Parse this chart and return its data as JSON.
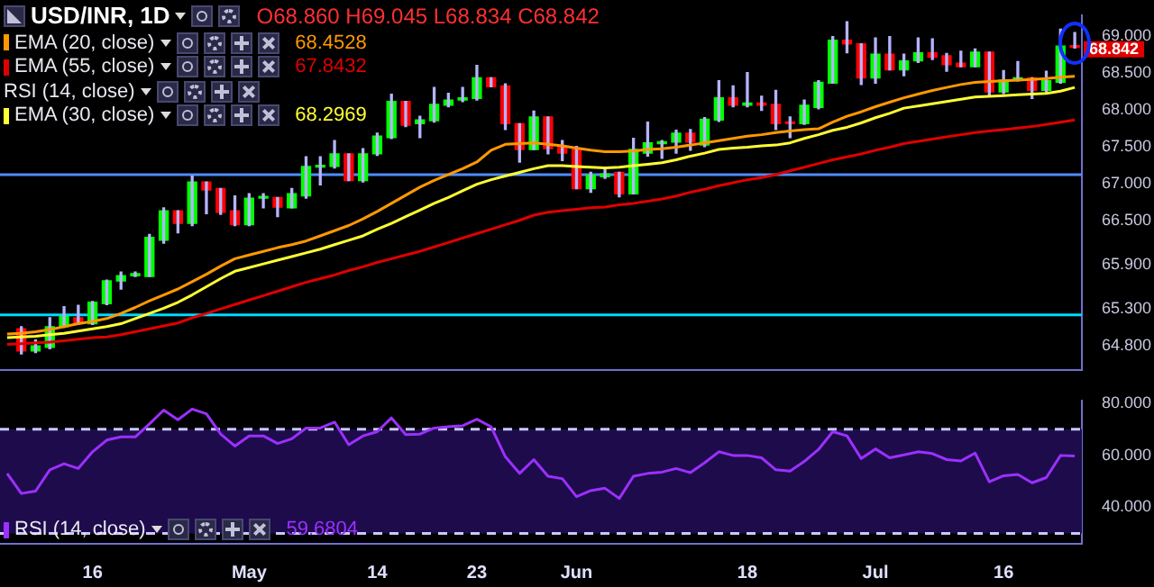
{
  "chart_data": [
    {
      "type": "candlestick",
      "title": "USD/INR, 1D",
      "tick_labels": "y",
      "legend": "top left",
      "grid": false,
      "marker": "none",
      "categories": [
        null,
        null,
        null,
        null,
        null,
        null,
        null,
        null,
        null,
        null,
        null,
        null,
        null,
        null,
        null,
        null,
        null,
        null,
        null,
        null,
        null,
        null,
        null,
        null,
        null,
        null,
        null,
        null,
        null,
        null,
        null,
        null,
        null,
        null,
        null,
        null,
        null,
        null,
        null,
        null,
        null,
        null,
        null,
        null,
        null,
        null,
        null,
        null,
        null,
        null,
        null,
        null,
        null,
        null,
        null,
        null,
        null,
        null,
        null,
        null,
        null,
        null,
        null,
        null,
        null,
        null,
        null,
        null,
        null,
        null,
        null,
        null,
        null,
        null,
        null,
        null
      ],
      "ohlc": [
        null,
        [
          65.03,
          65.06,
          64.69,
          64.73
        ],
        [
          64.73,
          64.88,
          64.71,
          64.8
        ],
        [
          64.78,
          65.18,
          64.76,
          65.06
        ],
        [
          65.06,
          65.33,
          65.05,
          65.2
        ],
        [
          65.18,
          65.35,
          65.09,
          65.1
        ],
        [
          65.1,
          65.4,
          65.09,
          65.39
        ],
        [
          65.37,
          65.69,
          65.36,
          65.68
        ],
        [
          65.68,
          65.8,
          65.57,
          65.75
        ],
        [
          65.75,
          65.8,
          65.74,
          65.78
        ],
        [
          65.74,
          66.31,
          65.74,
          66.27
        ],
        [
          66.23,
          66.67,
          66.19,
          66.63
        ],
        [
          66.63,
          66.63,
          66.33,
          66.46
        ],
        [
          66.46,
          67.1,
          66.43,
          67.02
        ],
        [
          67.02,
          67.02,
          66.59,
          66.91
        ],
        [
          66.93,
          66.93,
          66.58,
          66.61
        ],
        [
          66.63,
          66.83,
          66.43,
          66.44
        ],
        [
          66.44,
          66.86,
          66.43,
          66.8
        ],
        [
          66.8,
          66.86,
          66.67,
          66.81
        ],
        [
          66.81,
          66.81,
          66.55,
          66.68
        ],
        [
          66.67,
          66.93,
          66.67,
          66.86
        ],
        [
          66.83,
          67.36,
          66.8,
          67.23
        ],
        [
          67.22,
          67.36,
          66.98,
          67.23
        ],
        [
          67.23,
          67.58,
          67.21,
          67.4
        ],
        [
          67.4,
          67.4,
          67.04,
          67.04
        ],
        [
          67.04,
          67.47,
          67.02,
          67.4
        ],
        [
          67.4,
          67.68,
          67.38,
          67.64
        ],
        [
          67.62,
          68.21,
          67.61,
          68.11
        ],
        [
          68.11,
          68.11,
          67.77,
          67.79
        ],
        [
          67.81,
          67.91,
          67.62,
          67.86
        ],
        [
          67.85,
          68.3,
          67.83,
          68.07
        ],
        [
          68.06,
          68.22,
          68.04,
          68.13
        ],
        [
          68.13,
          68.3,
          68.11,
          68.16
        ],
        [
          68.15,
          68.6,
          68.13,
          68.43
        ],
        [
          68.43,
          68.43,
          68.31,
          68.31
        ],
        [
          68.32,
          68.35,
          67.73,
          67.81
        ],
        [
          67.81,
          67.81,
          67.29,
          67.46
        ],
        [
          67.46,
          67.98,
          67.46,
          67.9
        ],
        [
          67.9,
          67.9,
          67.4,
          67.47
        ],
        [
          67.49,
          67.58,
          67.31,
          67.41
        ],
        [
          67.46,
          67.5,
          66.93,
          66.93
        ],
        [
          66.93,
          67.15,
          66.88,
          67.11
        ],
        [
          67.09,
          67.22,
          67.07,
          67.13
        ],
        [
          67.15,
          67.15,
          66.82,
          66.86
        ],
        [
          66.86,
          67.61,
          66.86,
          67.46
        ],
        [
          67.41,
          67.83,
          67.37,
          67.55
        ],
        [
          67.54,
          67.58,
          67.34,
          67.56
        ],
        [
          67.56,
          67.72,
          67.41,
          67.68
        ],
        [
          67.68,
          67.73,
          67.45,
          67.56
        ],
        [
          67.52,
          67.89,
          67.5,
          67.87
        ],
        [
          67.86,
          68.39,
          67.84,
          68.16
        ],
        [
          68.16,
          68.32,
          68.04,
          68.06
        ],
        [
          68.06,
          68.5,
          68.04,
          68.09
        ],
        [
          68.09,
          68.18,
          67.99,
          68.06
        ],
        [
          68.07,
          68.26,
          67.73,
          67.81
        ],
        [
          67.83,
          67.9,
          67.62,
          67.81
        ],
        [
          67.81,
          68.13,
          67.8,
          68.06
        ],
        [
          68.03,
          68.39,
          68.01,
          68.37
        ],
        [
          68.36,
          68.99,
          68.36,
          68.94
        ],
        [
          68.94,
          69.19,
          68.77,
          68.89
        ],
        [
          68.89,
          68.89,
          68.34,
          68.43
        ],
        [
          68.43,
          68.97,
          68.36,
          68.75
        ],
        [
          68.75,
          68.99,
          68.54,
          68.54
        ],
        [
          68.54,
          68.75,
          68.46,
          68.66
        ],
        [
          68.66,
          68.97,
          68.64,
          68.77
        ],
        [
          68.77,
          68.96,
          68.68,
          68.71
        ],
        [
          68.73,
          68.76,
          68.52,
          68.61
        ],
        [
          68.63,
          68.79,
          68.58,
          68.58
        ],
        [
          68.58,
          68.82,
          68.58,
          68.78
        ],
        [
          68.78,
          68.78,
          68.18,
          68.24
        ],
        [
          68.24,
          68.53,
          68.22,
          68.4
        ],
        [
          68.4,
          68.65,
          68.39,
          68.43
        ],
        [
          68.43,
          68.43,
          68.15,
          68.26
        ],
        [
          68.26,
          68.52,
          68.24,
          68.39
        ],
        [
          68.37,
          69.09,
          68.36,
          68.86
        ],
        [
          68.86,
          69.045,
          68.834,
          68.842
        ]
      ],
      "colors": [
        null,
        "#ff0000",
        "#00ff00",
        "#00ff00",
        "#00ff00",
        "#ff0000",
        "#00ff00",
        "#00ff00",
        "#00ff00",
        "#00ff00",
        "#00ff00",
        "#00ff00",
        "#ff0000",
        "#00ff00",
        "#ff0000",
        "#ff0000",
        "#ff0000",
        "#00ff00",
        "#00ff00",
        "#ff0000",
        "#00ff00",
        "#00ff00",
        "#00ff00",
        "#00ff00",
        "#ff0000",
        "#00ff00",
        "#00ff00",
        "#00ff00",
        "#ff0000",
        "#00ff00",
        "#00ff00",
        "#00ff00",
        "#00ff00",
        "#00ff00",
        "#ff0000",
        "#ff0000",
        "#ff0000",
        "#00ff00",
        "#ff0000",
        "#ff0000",
        "#ff0000",
        "#00ff00",
        "#00ff00",
        "#ff0000",
        "#00ff00",
        "#00ff00",
        "#00ff00",
        "#00ff00",
        "#ff0000",
        "#00ff00",
        "#00ff00",
        "#ff0000",
        "#00ff00",
        "#ff0000",
        "#ff0000",
        "#ff0000",
        "#00ff00",
        "#00ff00",
        "#00ff00",
        "#ff0000",
        "#ff0000",
        "#00ff00",
        "#ff0000",
        "#00ff00",
        "#00ff00",
        "#ff0000",
        "#ff0000",
        "#ff0000",
        "#00ff00",
        "#ff0000",
        "#00ff00",
        "#00ff00",
        "#ff0000",
        "#00ff00",
        "#00ff00",
        "#ff0000"
      ],
      "series": [
        {
          "name": "EMA (20, close)",
          "type": "line",
          "color": "#ff9900",
          "values": [
            64.96,
            64.97,
            64.99,
            65.02,
            65.06,
            65.1,
            65.13,
            65.17,
            65.24,
            65.32,
            65.41,
            65.49,
            65.57,
            65.67,
            65.77,
            65.88,
            65.98,
            66.03,
            66.08,
            66.13,
            66.17,
            66.22,
            66.29,
            66.36,
            66.43,
            66.52,
            66.62,
            66.73,
            66.84,
            66.95,
            67.04,
            67.12,
            67.2,
            67.29,
            67.45,
            67.53,
            67.54,
            67.55,
            67.53,
            67.51,
            67.48,
            67.45,
            67.43,
            67.43,
            67.44,
            67.46,
            67.47,
            67.49,
            67.52,
            67.55,
            67.58,
            67.61,
            67.64,
            67.66,
            67.69,
            67.71,
            67.73,
            67.74,
            67.83,
            67.91,
            67.97,
            68.04,
            68.1,
            68.16,
            68.21,
            68.26,
            68.3,
            68.34,
            68.37,
            68.38,
            68.39,
            68.4,
            68.41,
            68.42,
            68.44,
            68.45
          ]
        },
        {
          "name": "EMA (55, close)",
          "type": "line",
          "color": "#e00000",
          "values": [
            64.82,
            64.83,
            64.84,
            64.85,
            64.87,
            64.89,
            64.91,
            64.92,
            64.95,
            64.99,
            65.03,
            65.07,
            65.11,
            65.18,
            65.24,
            65.3,
            65.36,
            65.42,
            65.48,
            65.54,
            65.6,
            65.66,
            65.71,
            65.76,
            65.82,
            65.87,
            65.93,
            65.98,
            66.03,
            66.08,
            66.14,
            66.2,
            66.26,
            66.32,
            66.38,
            66.44,
            66.5,
            66.57,
            66.61,
            66.63,
            66.65,
            66.67,
            66.68,
            66.71,
            66.73,
            66.76,
            66.79,
            66.83,
            66.88,
            66.92,
            66.97,
            67.01,
            67.05,
            67.08,
            67.12,
            67.17,
            67.22,
            67.27,
            67.32,
            67.36,
            67.4,
            67.45,
            67.49,
            67.54,
            67.57,
            67.6,
            67.63,
            67.66,
            67.69,
            67.71,
            67.73,
            67.75,
            67.77,
            67.8,
            67.83,
            67.86
          ]
        },
        {
          "name": "EMA (30, close)",
          "type": "line",
          "color": "#ffff33",
          "values": [
            64.91,
            64.92,
            64.93,
            64.95,
            64.97,
            65.0,
            65.03,
            65.06,
            65.1,
            65.17,
            65.24,
            65.31,
            65.39,
            65.49,
            65.6,
            65.71,
            65.81,
            65.86,
            65.91,
            65.96,
            66.01,
            66.06,
            66.11,
            66.17,
            66.23,
            66.29,
            66.38,
            66.46,
            66.55,
            66.64,
            66.73,
            66.81,
            66.9,
            66.99,
            67.05,
            67.1,
            67.15,
            67.2,
            67.24,
            67.24,
            67.23,
            67.22,
            67.21,
            67.22,
            67.24,
            67.26,
            67.28,
            67.32,
            67.37,
            67.41,
            67.46,
            67.48,
            67.49,
            67.51,
            67.52,
            67.55,
            67.61,
            67.66,
            67.72,
            67.76,
            67.82,
            67.89,
            67.95,
            68.02,
            68.05,
            68.08,
            68.11,
            68.14,
            68.17,
            68.18,
            68.19,
            68.2,
            68.21,
            68.22,
            68.25,
            68.3
          ]
        }
      ],
      "ylim": [
        64.47,
        69.28
      ],
      "yticks": [
        {
          "value": 64.8,
          "label": "64.800"
        },
        {
          "value": 65.3,
          "label": "65.300"
        },
        {
          "value": 65.9,
          "label": "65.900"
        },
        {
          "value": 66.5,
          "label": "66.500"
        },
        {
          "value": 67,
          "label": "67.000"
        },
        {
          "value": 67.5,
          "label": "67.500"
        },
        {
          "value": 68,
          "label": "68.000"
        },
        {
          "value": 68.5,
          "label": "68.500"
        },
        {
          "value": 69,
          "label": "69.000"
        }
      ],
      "ref_lines": [
        {
          "axis": "y",
          "value": 67.12,
          "color": "#4f8cff"
        },
        {
          "axis": "y",
          "value": 65.22,
          "color": "#00d8ff"
        }
      ],
      "annotations": [
        "O68.860 H69.045 L68.834 C68.842",
        "68.4528",
        "67.8432",
        "68.2969",
        "68.842"
      ]
    },
    {
      "type": "line",
      "legend": "bottom left",
      "grid": false,
      "marker": "none",
      "categories": [
        null,
        null,
        null,
        null,
        null,
        null,
        "16",
        null,
        null,
        null,
        null,
        null,
        null,
        null,
        null,
        null,
        null,
        "May",
        null,
        null,
        null,
        null,
        null,
        null,
        null,
        null,
        "14",
        null,
        null,
        null,
        null,
        null,
        null,
        "23",
        null,
        null,
        null,
        null,
        null,
        null,
        "Jun",
        null,
        null,
        null,
        null,
        null,
        null,
        null,
        null,
        null,
        null,
        null,
        "18",
        null,
        null,
        null,
        null,
        null,
        null,
        null,
        null,
        "Jul",
        null,
        null,
        null,
        null,
        null,
        null,
        null,
        null,
        "16",
        null,
        null,
        null,
        null,
        null
      ],
      "series": [
        {
          "name": "RSI (14, close)",
          "color": "#9b30ff",
          "values": [
            53.0,
            45.3,
            46.2,
            54.4,
            56.7,
            54.9,
            61.3,
            65.8,
            67.0,
            67.0,
            72.0,
            77.3,
            73.6,
            77.7,
            75.9,
            68.1,
            63.5,
            67.4,
            67.4,
            64.5,
            66.3,
            70.4,
            70.4,
            72.7,
            64.0,
            67.4,
            69.0,
            74.3,
            67.9,
            68.1,
            70.4,
            70.9,
            71.3,
            73.8,
            70.9,
            59.4,
            53.0,
            58.3,
            51.9,
            51.0,
            44.1,
            46.4,
            47.3,
            43.4,
            51.9,
            53.0,
            53.5,
            54.9,
            53.3,
            57.1,
            61.3,
            59.9,
            59.9,
            59.0,
            54.4,
            53.9,
            57.6,
            62.2,
            69.0,
            67.4,
            58.7,
            62.4,
            59.0,
            60.1,
            61.3,
            60.6,
            58.3,
            57.8,
            60.8,
            49.8,
            52.1,
            52.6,
            49.4,
            51.4,
            59.9,
            59.7
          ]
        }
      ],
      "ylim": [
        26,
        81
      ],
      "yticks": [
        {
          "value": 40,
          "label": "40.000"
        },
        {
          "value": 60,
          "label": "60.000"
        },
        {
          "value": 80,
          "label": "80.000"
        }
      ],
      "bands": [
        {
          "axis": "y",
          "from": 30,
          "to": 70,
          "color": "#1e0b4b"
        }
      ],
      "ref_lines": [
        {
          "axis": "y",
          "value": 70,
          "color": "#c8c8ff",
          "line_style": "dashed"
        },
        {
          "axis": "y",
          "value": 30,
          "color": "#c8c8ff",
          "line_style": "dashed"
        }
      ],
      "annotations": [
        "59.6804"
      ]
    }
  ]
}
